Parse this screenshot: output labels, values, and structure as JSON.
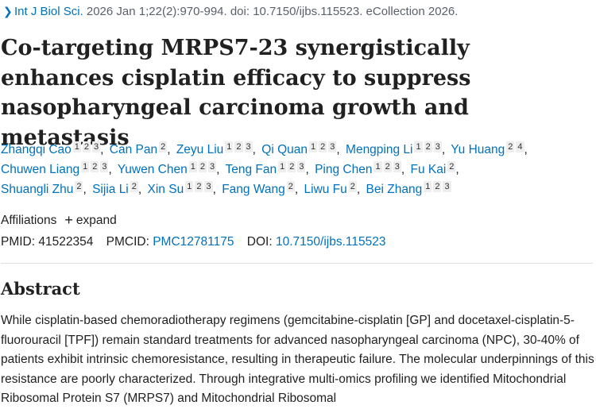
{
  "citation": {
    "journal": "Int J Biol Sci.",
    "details": " 2026 Jan 1;22(2):970-994. doi: 10.7150/ijbs.115523. eCollection 2026."
  },
  "title": "Co-targeting MRPS7-23 synergistically enhances cisplatin efficacy to suppress nasopharyngeal carcinoma growth and metastasis",
  "authors": [
    {
      "name": "Zhangqi Cao",
      "affs": [
        "1",
        "2",
        "3"
      ]
    },
    {
      "name": "Can Pan",
      "affs": [
        "2"
      ]
    },
    {
      "name": "Zeyu Liu",
      "affs": [
        "1",
        "2",
        "3"
      ]
    },
    {
      "name": "Qi Quan",
      "affs": [
        "1",
        "2",
        "3"
      ]
    },
    {
      "name": "Mengping Li",
      "affs": [
        "1",
        "2",
        "3"
      ]
    },
    {
      "name": "Yu Huang",
      "affs": [
        "2",
        "4"
      ]
    },
    {
      "name": "Chuwen Liang",
      "affs": [
        "1",
        "2",
        "3"
      ]
    },
    {
      "name": "Yuwen Chen",
      "affs": [
        "1",
        "2",
        "3"
      ]
    },
    {
      "name": "Teng Fan",
      "affs": [
        "1",
        "2",
        "3"
      ]
    },
    {
      "name": "Ping Chen",
      "affs": [
        "1",
        "2",
        "3"
      ]
    },
    {
      "name": "Fu Kai",
      "affs": [
        "2"
      ]
    },
    {
      "name": "Shuangli Zhu",
      "affs": [
        "2"
      ]
    },
    {
      "name": "Sijia Li",
      "affs": [
        "2"
      ]
    },
    {
      "name": "Xin Su",
      "affs": [
        "1",
        "2",
        "3"
      ]
    },
    {
      "name": "Fang Wang",
      "affs": [
        "2"
      ]
    },
    {
      "name": "Liwu Fu",
      "affs": [
        "2"
      ]
    },
    {
      "name": "Bei Zhang",
      "affs": [
        "1",
        "2",
        "3"
      ]
    }
  ],
  "affiliations": {
    "label": "Affiliations",
    "expand_label": "expand"
  },
  "identifiers": {
    "pmid_label": "PMID:",
    "pmid": "41522354",
    "pmcid_label": "PMCID:",
    "pmcid": "PMC12781175",
    "doi_label": "DOI:",
    "doi": "10.7150/ijbs.115523"
  },
  "abstract": {
    "heading": "Abstract",
    "text": "While cisplatin-based chemoradiotherapy regimens (gemcitabine-cisplatin [GP] and docetaxel-cisplatin-5-fluorouracil [TPF]) remain standard treatments for advanced nasopharyngeal carcinoma (NPC), 30-40% of patients exhibit intrinsic chemoresistance, resulting in therapeutic failure. The molecular underpinnings of this resistance are poorly characterized. Through integrative multi-omics profiling we identified Mitochondrial Ribosomal Protein S7 (MRPS7) and Mitochondrial Ribosomal"
  },
  "colors": {
    "link": "#0071bc",
    "text": "#212121",
    "muted": "#5b616b",
    "badge_bg": "#eeeeee"
  }
}
